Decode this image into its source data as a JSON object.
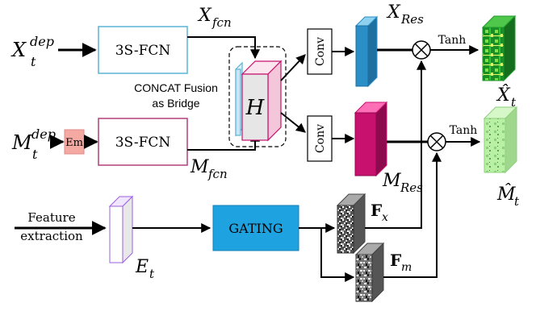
{
  "inputs": {
    "x_dep": {
      "main": "X",
      "sub": "t",
      "sup": "dep"
    },
    "m_dep": {
      "main": "M",
      "sub": "t",
      "sup": "dep"
    },
    "feature": {
      "line1": "Feature",
      "line2": "extraction"
    }
  },
  "blocks": {
    "fcn_top": "3S-FCN",
    "fcn_bottom": "3S-FCN",
    "em": "Em",
    "conv_top": "Conv",
    "conv_bottom": "Conv",
    "gating": "GATING",
    "fusion_line1": "CONCAT Fusion",
    "fusion_line2": "as Bridge"
  },
  "symbols": {
    "x_fcn": {
      "main": "X",
      "sub": "fcn"
    },
    "m_fcn": {
      "main": "M",
      "sub": "fcn"
    },
    "h": "H",
    "x_res": {
      "main": "X",
      "sub": "Res"
    },
    "m_res": {
      "main": "M",
      "sub": "Res"
    },
    "e_t": {
      "main": "E",
      "sub": "t"
    },
    "f_x": {
      "main": "F",
      "sub": "x"
    },
    "f_m": {
      "main": "F",
      "sub": "m"
    },
    "x_hat": {
      "main": "X̂",
      "sub": "t"
    },
    "m_hat": {
      "main": "M̂",
      "sub": "t"
    },
    "tanh_top": "Tanh",
    "tanh_bottom": "Tanh",
    "otimes": "⊗"
  },
  "colors": {
    "fcn_top_border": "#5ab4d6",
    "fcn_bottom_border": "#b0407a",
    "em_fill": "#f4a9a3",
    "x_res_fill": "#2a8fc7",
    "m_res_fill": "#c8106e",
    "gating_fill": "#1ea2e0",
    "e_t_border": "#9b5fe0",
    "output_top": "#1c9a2a",
    "output_bottom": "#a8e89a"
  }
}
